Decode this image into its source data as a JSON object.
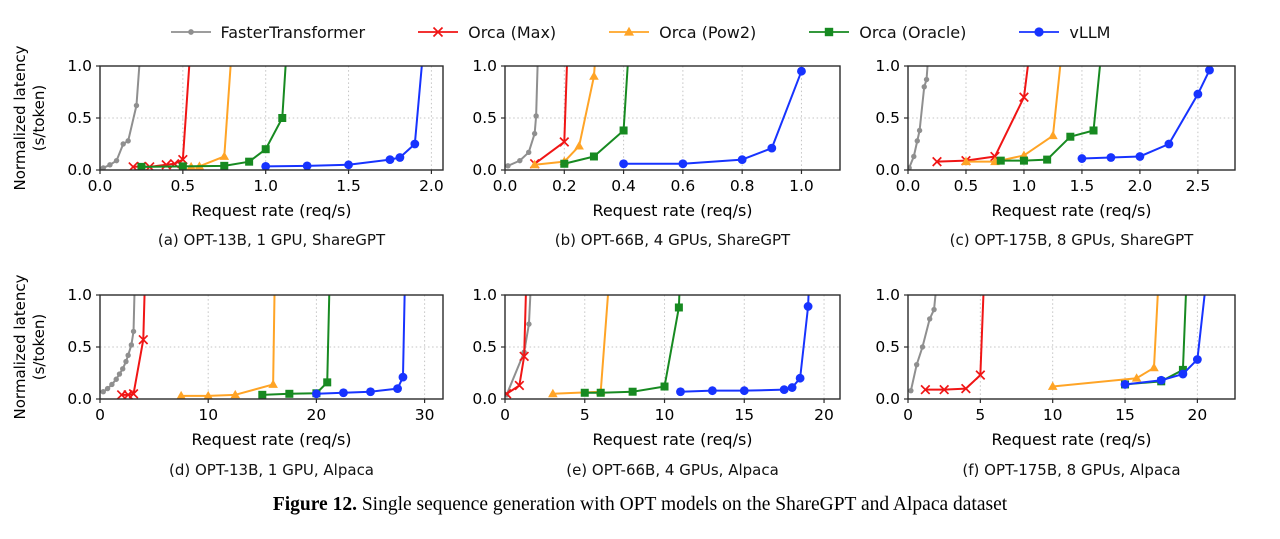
{
  "figure_caption": {
    "label": "Figure 12.",
    "text": "Single sequence generation with OPT models on the ShareGPT and Alpaca dataset"
  },
  "y_axis_label": {
    "line1": "Normalized latency",
    "line2": "(s/token)"
  },
  "legend": {
    "items": [
      {
        "label": "FasterTransformer",
        "color": "#8f8f8f",
        "marker": "dot"
      },
      {
        "label": "Orca (Max)",
        "color": "#f01515",
        "marker": "x"
      },
      {
        "label": "Orca (Pow2)",
        "color": "#ffa426",
        "marker": "triangle"
      },
      {
        "label": "Orca (Oracle)",
        "color": "#178a21",
        "marker": "square"
      },
      {
        "label": "vLLM",
        "color": "#1733ff",
        "marker": "circle"
      }
    ]
  },
  "axis_style": {
    "grid_color": "#c4c4c4",
    "border_color": "#2b2b2b",
    "tick_label_color": "#000000"
  },
  "chart_data": [
    {
      "type": "line",
      "panel": "a",
      "caption": "(a) OPT-13B, 1 GPU, ShareGPT",
      "xlabel": "Request rate (req/s)",
      "ylabel": "Normalized latency (s/token)",
      "xlim": [
        0,
        2.07
      ],
      "ylim": [
        0,
        1.0
      ],
      "xticks": [
        0.0,
        0.5,
        1.0,
        1.5,
        2.0
      ],
      "xtick_decimals": 1,
      "yticks": [
        0.0,
        0.5,
        1.0
      ],
      "grid": true,
      "series": [
        {
          "name": "FasterTransformer",
          "points": [
            [
              0.02,
              0.02
            ],
            [
              0.06,
              0.05
            ],
            [
              0.1,
              0.09
            ],
            [
              0.14,
              0.25
            ],
            [
              0.17,
              0.28
            ],
            [
              0.22,
              0.62
            ],
            [
              0.26,
              1.5
            ]
          ]
        },
        {
          "name": "Orca (Max)",
          "points": [
            [
              0.2,
              0.03
            ],
            [
              0.25,
              0.035
            ],
            [
              0.3,
              0.03
            ],
            [
              0.4,
              0.05
            ],
            [
              0.45,
              0.06
            ],
            [
              0.5,
              0.1
            ],
            [
              0.56,
              1.5
            ]
          ]
        },
        {
          "name": "Orca (Pow2)",
          "points": [
            [
              0.55,
              0.03
            ],
            [
              0.6,
              0.035
            ],
            [
              0.75,
              0.13
            ],
            [
              0.81,
              1.5
            ]
          ]
        },
        {
          "name": "Orca (Oracle)",
          "points": [
            [
              0.25,
              0.03
            ],
            [
              0.5,
              0.035
            ],
            [
              0.75,
              0.04
            ],
            [
              0.9,
              0.08
            ],
            [
              1.0,
              0.2
            ],
            [
              1.1,
              0.5
            ],
            [
              1.14,
              1.5
            ]
          ]
        },
        {
          "name": "vLLM",
          "points": [
            [
              1.0,
              0.035
            ],
            [
              1.25,
              0.04
            ],
            [
              1.5,
              0.05
            ],
            [
              1.75,
              0.1
            ],
            [
              1.81,
              0.12
            ],
            [
              1.9,
              0.25
            ],
            [
              1.97,
              1.5
            ]
          ]
        }
      ]
    },
    {
      "type": "line",
      "panel": "b",
      "caption": "(b) OPT-66B, 4 GPUs, ShareGPT",
      "xlabel": "Request rate (req/s)",
      "ylabel": "Normalized latency (s/token)",
      "xlim": [
        0,
        1.13
      ],
      "ylim": [
        0,
        1.0
      ],
      "xticks": [
        0.0,
        0.2,
        0.4,
        0.6,
        0.8,
        1.0
      ],
      "xtick_decimals": 1,
      "yticks": [
        0.0,
        0.5,
        1.0
      ],
      "grid": true,
      "series": [
        {
          "name": "FasterTransformer",
          "points": [
            [
              0.01,
              0.04
            ],
            [
              0.05,
              0.09
            ],
            [
              0.08,
              0.17
            ],
            [
              0.1,
              0.35
            ],
            [
              0.105,
              0.52
            ],
            [
              0.115,
              1.5
            ]
          ]
        },
        {
          "name": "Orca (Max)",
          "points": [
            [
              0.1,
              0.06
            ],
            [
              0.2,
              0.27
            ],
            [
              0.215,
              1.5
            ]
          ]
        },
        {
          "name": "Orca (Pow2)",
          "points": [
            [
              0.1,
              0.05
            ],
            [
              0.2,
              0.08
            ],
            [
              0.25,
              0.23
            ],
            [
              0.3,
              0.9
            ],
            [
              0.315,
              1.5
            ]
          ]
        },
        {
          "name": "Orca (Oracle)",
          "points": [
            [
              0.2,
              0.06
            ],
            [
              0.3,
              0.13
            ],
            [
              0.4,
              0.38
            ],
            [
              0.425,
              1.5
            ]
          ]
        },
        {
          "name": "vLLM",
          "points": [
            [
              0.4,
              0.06
            ],
            [
              0.6,
              0.06
            ],
            [
              0.8,
              0.1
            ],
            [
              0.9,
              0.21
            ],
            [
              1.0,
              0.95
            ]
          ]
        }
      ]
    },
    {
      "type": "line",
      "panel": "c",
      "caption": "(c) OPT-175B, 8 GPUs, ShareGPT",
      "xlabel": "Request rate (req/s)",
      "ylabel": "Normalized latency (s/token)",
      "xlim": [
        0,
        2.82
      ],
      "ylim": [
        0,
        1.0
      ],
      "xticks": [
        0.0,
        0.5,
        1.0,
        1.5,
        2.0,
        2.5
      ],
      "xtick_decimals": 1,
      "yticks": [
        0.0,
        0.5,
        1.0
      ],
      "grid": true,
      "series": [
        {
          "name": "FasterTransformer",
          "points": [
            [
              0.01,
              0.02
            ],
            [
              0.05,
              0.13
            ],
            [
              0.08,
              0.28
            ],
            [
              0.1,
              0.38
            ],
            [
              0.14,
              0.8
            ],
            [
              0.16,
              0.87
            ],
            [
              0.2,
              1.5
            ]
          ]
        },
        {
          "name": "Orca (Max)",
          "points": [
            [
              0.25,
              0.08
            ],
            [
              0.5,
              0.09
            ],
            [
              0.75,
              0.13
            ],
            [
              1.0,
              0.7
            ],
            [
              1.09,
              1.5
            ]
          ]
        },
        {
          "name": "Orca (Pow2)",
          "points": [
            [
              0.5,
              0.08
            ],
            [
              0.75,
              0.08
            ],
            [
              1.0,
              0.14
            ],
            [
              1.25,
              0.33
            ],
            [
              1.36,
              1.5
            ]
          ]
        },
        {
          "name": "Orca (Oracle)",
          "points": [
            [
              0.8,
              0.09
            ],
            [
              1.0,
              0.09
            ],
            [
              1.2,
              0.1
            ],
            [
              1.4,
              0.32
            ],
            [
              1.6,
              0.38
            ],
            [
              1.7,
              1.5
            ]
          ]
        },
        {
          "name": "vLLM",
          "points": [
            [
              1.5,
              0.11
            ],
            [
              1.75,
              0.12
            ],
            [
              2.0,
              0.13
            ],
            [
              2.25,
              0.25
            ],
            [
              2.5,
              0.73
            ],
            [
              2.6,
              0.96
            ]
          ]
        }
      ]
    },
    {
      "type": "line",
      "panel": "d",
      "caption": "(d) OPT-13B, 1 GPU, Alpaca",
      "xlabel": "Request rate (req/s)",
      "ylabel": "Normalized latency (s/token)",
      "xlim": [
        0,
        31.7
      ],
      "ylim": [
        0,
        1.0
      ],
      "xticks": [
        0,
        10,
        20,
        30
      ],
      "xtick_decimals": 0,
      "yticks": [
        0.0,
        0.5,
        1.0
      ],
      "grid": true,
      "series": [
        {
          "name": "FasterTransformer",
          "points": [
            [
              0.3,
              0.07
            ],
            [
              0.7,
              0.1
            ],
            [
              1.1,
              0.14
            ],
            [
              1.5,
              0.19
            ],
            [
              1.8,
              0.24
            ],
            [
              2.1,
              0.29
            ],
            [
              2.4,
              0.36
            ],
            [
              2.6,
              0.42
            ],
            [
              2.9,
              0.52
            ],
            [
              3.1,
              0.65
            ],
            [
              3.3,
              1.5
            ]
          ]
        },
        {
          "name": "Orca (Max)",
          "points": [
            [
              2.0,
              0.04
            ],
            [
              2.6,
              0.04
            ],
            [
              3.1,
              0.05
            ],
            [
              4.0,
              0.57
            ],
            [
              4.25,
              1.5
            ]
          ]
        },
        {
          "name": "Orca (Pow2)",
          "points": [
            [
              7.5,
              0.03
            ],
            [
              10.0,
              0.03
            ],
            [
              12.5,
              0.04
            ],
            [
              16.0,
              0.14
            ],
            [
              16.2,
              1.5
            ]
          ]
        },
        {
          "name": "Orca (Oracle)",
          "points": [
            [
              15.0,
              0.04
            ],
            [
              17.5,
              0.05
            ],
            [
              20.0,
              0.055
            ],
            [
              21.0,
              0.16
            ],
            [
              21.3,
              1.5
            ]
          ]
        },
        {
          "name": "vLLM",
          "points": [
            [
              20.0,
              0.05
            ],
            [
              22.5,
              0.06
            ],
            [
              25.0,
              0.07
            ],
            [
              27.5,
              0.1
            ],
            [
              28.0,
              0.21
            ],
            [
              28.25,
              1.5
            ]
          ]
        }
      ]
    },
    {
      "type": "line",
      "panel": "e",
      "caption": "(e) OPT-66B, 4 GPUs, Alpaca",
      "xlabel": "Request rate (req/s)",
      "ylabel": "Normalized latency (s/token)",
      "xlim": [
        0,
        21
      ],
      "ylim": [
        0,
        1.0
      ],
      "xticks": [
        0,
        5,
        10,
        15,
        20
      ],
      "xtick_decimals": 0,
      "yticks": [
        0.0,
        0.5,
        1.0
      ],
      "grid": true,
      "series": [
        {
          "name": "FasterTransformer",
          "points": [
            [
              0.1,
              0.04
            ],
            [
              1.2,
              0.45
            ],
            [
              1.5,
              0.72
            ],
            [
              1.75,
              1.5
            ]
          ]
        },
        {
          "name": "Orca (Max)",
          "points": [
            [
              0.1,
              0.05
            ],
            [
              0.9,
              0.13
            ],
            [
              1.2,
              0.41
            ],
            [
              1.4,
              1.5
            ]
          ]
        },
        {
          "name": "Orca (Pow2)",
          "points": [
            [
              3.0,
              0.05
            ],
            [
              6.0,
              0.07
            ],
            [
              6.7,
              1.5
            ]
          ]
        },
        {
          "name": "Orca (Oracle)",
          "points": [
            [
              5.0,
              0.06
            ],
            [
              6.0,
              0.06
            ],
            [
              8.0,
              0.07
            ],
            [
              10.0,
              0.12
            ],
            [
              10.9,
              0.88
            ],
            [
              11.05,
              1.5
            ]
          ]
        },
        {
          "name": "vLLM",
          "points": [
            [
              11.0,
              0.07
            ],
            [
              13.0,
              0.08
            ],
            [
              15.0,
              0.08
            ],
            [
              17.5,
              0.09
            ],
            [
              18.0,
              0.11
            ],
            [
              18.5,
              0.2
            ],
            [
              19.0,
              0.89
            ],
            [
              19.15,
              1.5
            ]
          ]
        }
      ]
    },
    {
      "type": "line",
      "panel": "f",
      "caption": "(f) OPT-175B, 8 GPUs, Alpaca",
      "xlabel": "Request rate (req/s)",
      "ylabel": "Normalized latency (s/token)",
      "xlim": [
        0,
        22.6
      ],
      "ylim": [
        0,
        1.0
      ],
      "xticks": [
        0,
        5,
        10,
        15,
        20
      ],
      "xtick_decimals": 0,
      "yticks": [
        0.0,
        0.5,
        1.0
      ],
      "grid": true,
      "series": [
        {
          "name": "FasterTransformer",
          "points": [
            [
              0.2,
              0.08
            ],
            [
              0.6,
              0.33
            ],
            [
              1.0,
              0.5
            ],
            [
              1.5,
              0.77
            ],
            [
              1.8,
              0.86
            ],
            [
              2.25,
              1.5
            ]
          ]
        },
        {
          "name": "Orca (Max)",
          "points": [
            [
              1.2,
              0.09
            ],
            [
              2.5,
              0.09
            ],
            [
              4.0,
              0.1
            ],
            [
              5.0,
              0.23
            ],
            [
              5.35,
              1.5
            ]
          ]
        },
        {
          "name": "Orca (Pow2)",
          "points": [
            [
              10.0,
              0.12
            ],
            [
              15.8,
              0.2
            ],
            [
              17.0,
              0.3
            ],
            [
              17.45,
              1.5
            ]
          ]
        },
        {
          "name": "Orca (Oracle)",
          "points": [
            [
              15.0,
              0.14
            ],
            [
              17.5,
              0.17
            ],
            [
              19.0,
              0.28
            ],
            [
              19.35,
              1.5
            ]
          ]
        },
        {
          "name": "vLLM",
          "points": [
            [
              15.0,
              0.14
            ],
            [
              17.5,
              0.18
            ],
            [
              19.0,
              0.24
            ],
            [
              20.0,
              0.38
            ],
            [
              20.9,
              1.5
            ]
          ]
        }
      ]
    }
  ]
}
